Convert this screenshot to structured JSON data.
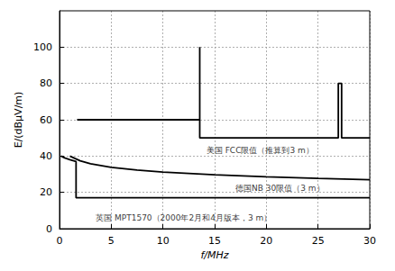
{
  "chart_data": {
    "type": "line",
    "x_label": "f/MHz",
    "y_label": "E/(dBμV/m)",
    "xlim": [
      0,
      30
    ],
    "xticks": [
      0,
      5,
      10,
      15,
      20,
      25,
      30
    ],
    "ylim": [
      0,
      120
    ],
    "yticks": [
      0,
      20,
      40,
      60,
      80,
      100
    ],
    "grid": true,
    "series": [
      {
        "color": "#000000",
        "x": [
          1.7,
          13.56,
          13.56,
          13.56,
          26.96,
          26.96,
          27.28,
          27.28,
          30
        ],
        "values": [
          60,
          60,
          100,
          50,
          50,
          80,
          80,
          50,
          50
        ]
      },
      {
        "color": "#000000",
        "x": [
          1,
          2,
          3,
          5,
          7.5,
          10,
          15,
          20,
          25,
          30
        ],
        "values": [
          40,
          37.4,
          35.8,
          33.8,
          32.3,
          31.2,
          29.7,
          28.6,
          27.7,
          27
        ]
      },
      {
        "color": "#000000",
        "x": [
          0.15,
          0.5,
          1,
          1.6,
          1.6,
          30
        ],
        "values": [
          40,
          39,
          38,
          37,
          17,
          17
        ]
      }
    ],
    "annotations": [
      {
        "text": "美国 FCC限值（推算到3 m）",
        "x": 14.2,
        "y": 43
      },
      {
        "text": "德国NB 30限值（3 m）",
        "x": 17,
        "y": 22.5
      },
      {
        "text": "英国 MPT1570（2000年2月和4月版本，3 m）",
        "x": 3.5,
        "y": 6
      }
    ]
  }
}
